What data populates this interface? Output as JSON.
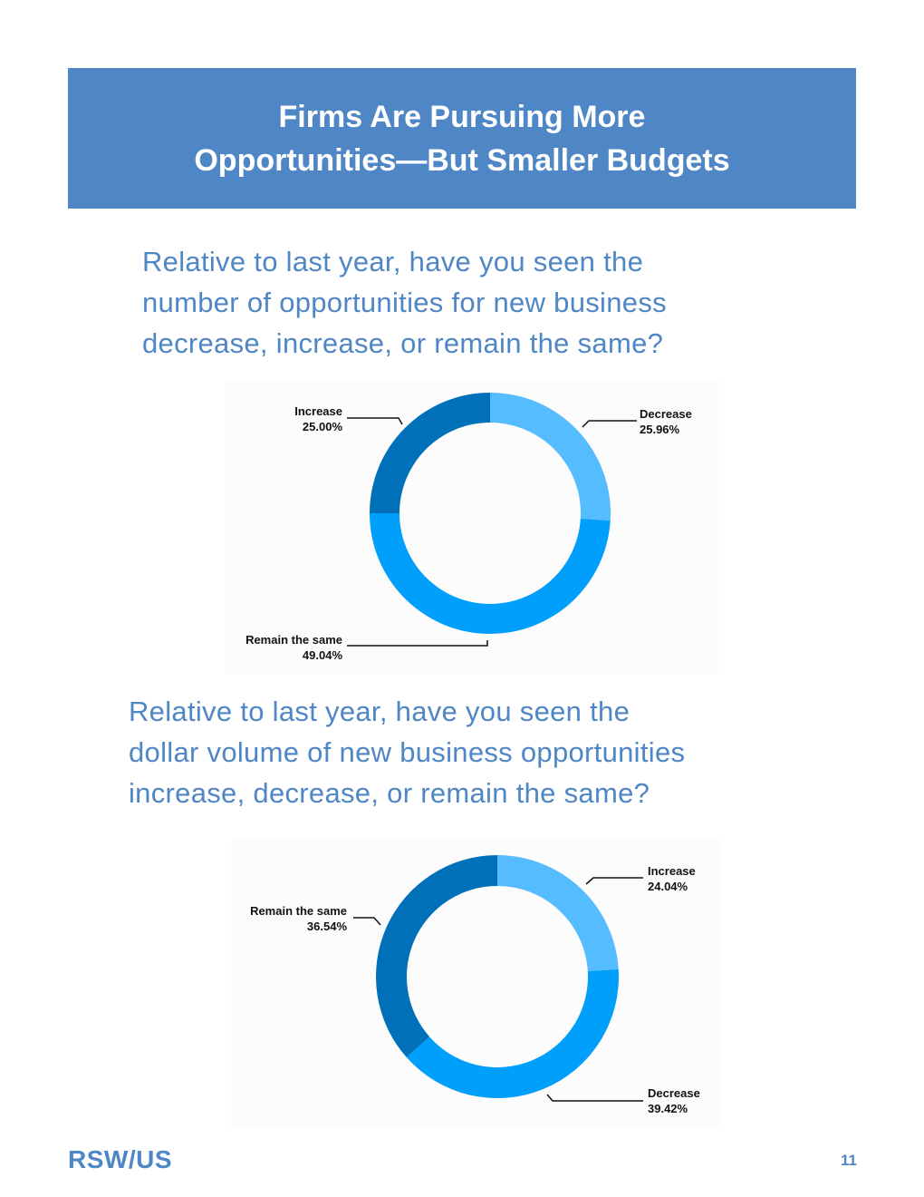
{
  "banner": {
    "title": "Firms Are Pursuing More\nOpportunities—But Smaller Budgets"
  },
  "questions": [
    "Relative to last year, have you seen the\nnumber of opportunities for new business\ndecrease, increase, or remain the same?",
    "Relative to last year, have you seen the\ndollar volume of new business opportunities\nincrease, decrease, or remain the same?"
  ],
  "colors": {
    "banner": "#4f86c6",
    "light_blue": "#55bcff",
    "medium_blue": "#009ffb",
    "dark_blue": "#0071b9"
  },
  "chart_data": [
    {
      "type": "pie",
      "style": "donut",
      "slices": [
        {
          "label": "Decrease",
          "value": 25.96,
          "display": "25.96%",
          "color": "#55bcff"
        },
        {
          "label": "Remain the same",
          "value": 49.04,
          "display": "49.04%",
          "color": "#009ffb"
        },
        {
          "label": "Increase",
          "value": 25.0,
          "display": "25.00%",
          "color": "#0071b9"
        }
      ]
    },
    {
      "type": "pie",
      "style": "donut",
      "slices": [
        {
          "label": "Increase",
          "value": 24.04,
          "display": "24.04%",
          "color": "#55bcff"
        },
        {
          "label": "Decrease",
          "value": 39.42,
          "display": "39.42%",
          "color": "#009ffb"
        },
        {
          "label": "Remain the same",
          "value": 36.54,
          "display": "36.54%",
          "color": "#0071b9"
        }
      ]
    }
  ],
  "footer": {
    "logo": "RSW/US",
    "page_number": "11"
  }
}
